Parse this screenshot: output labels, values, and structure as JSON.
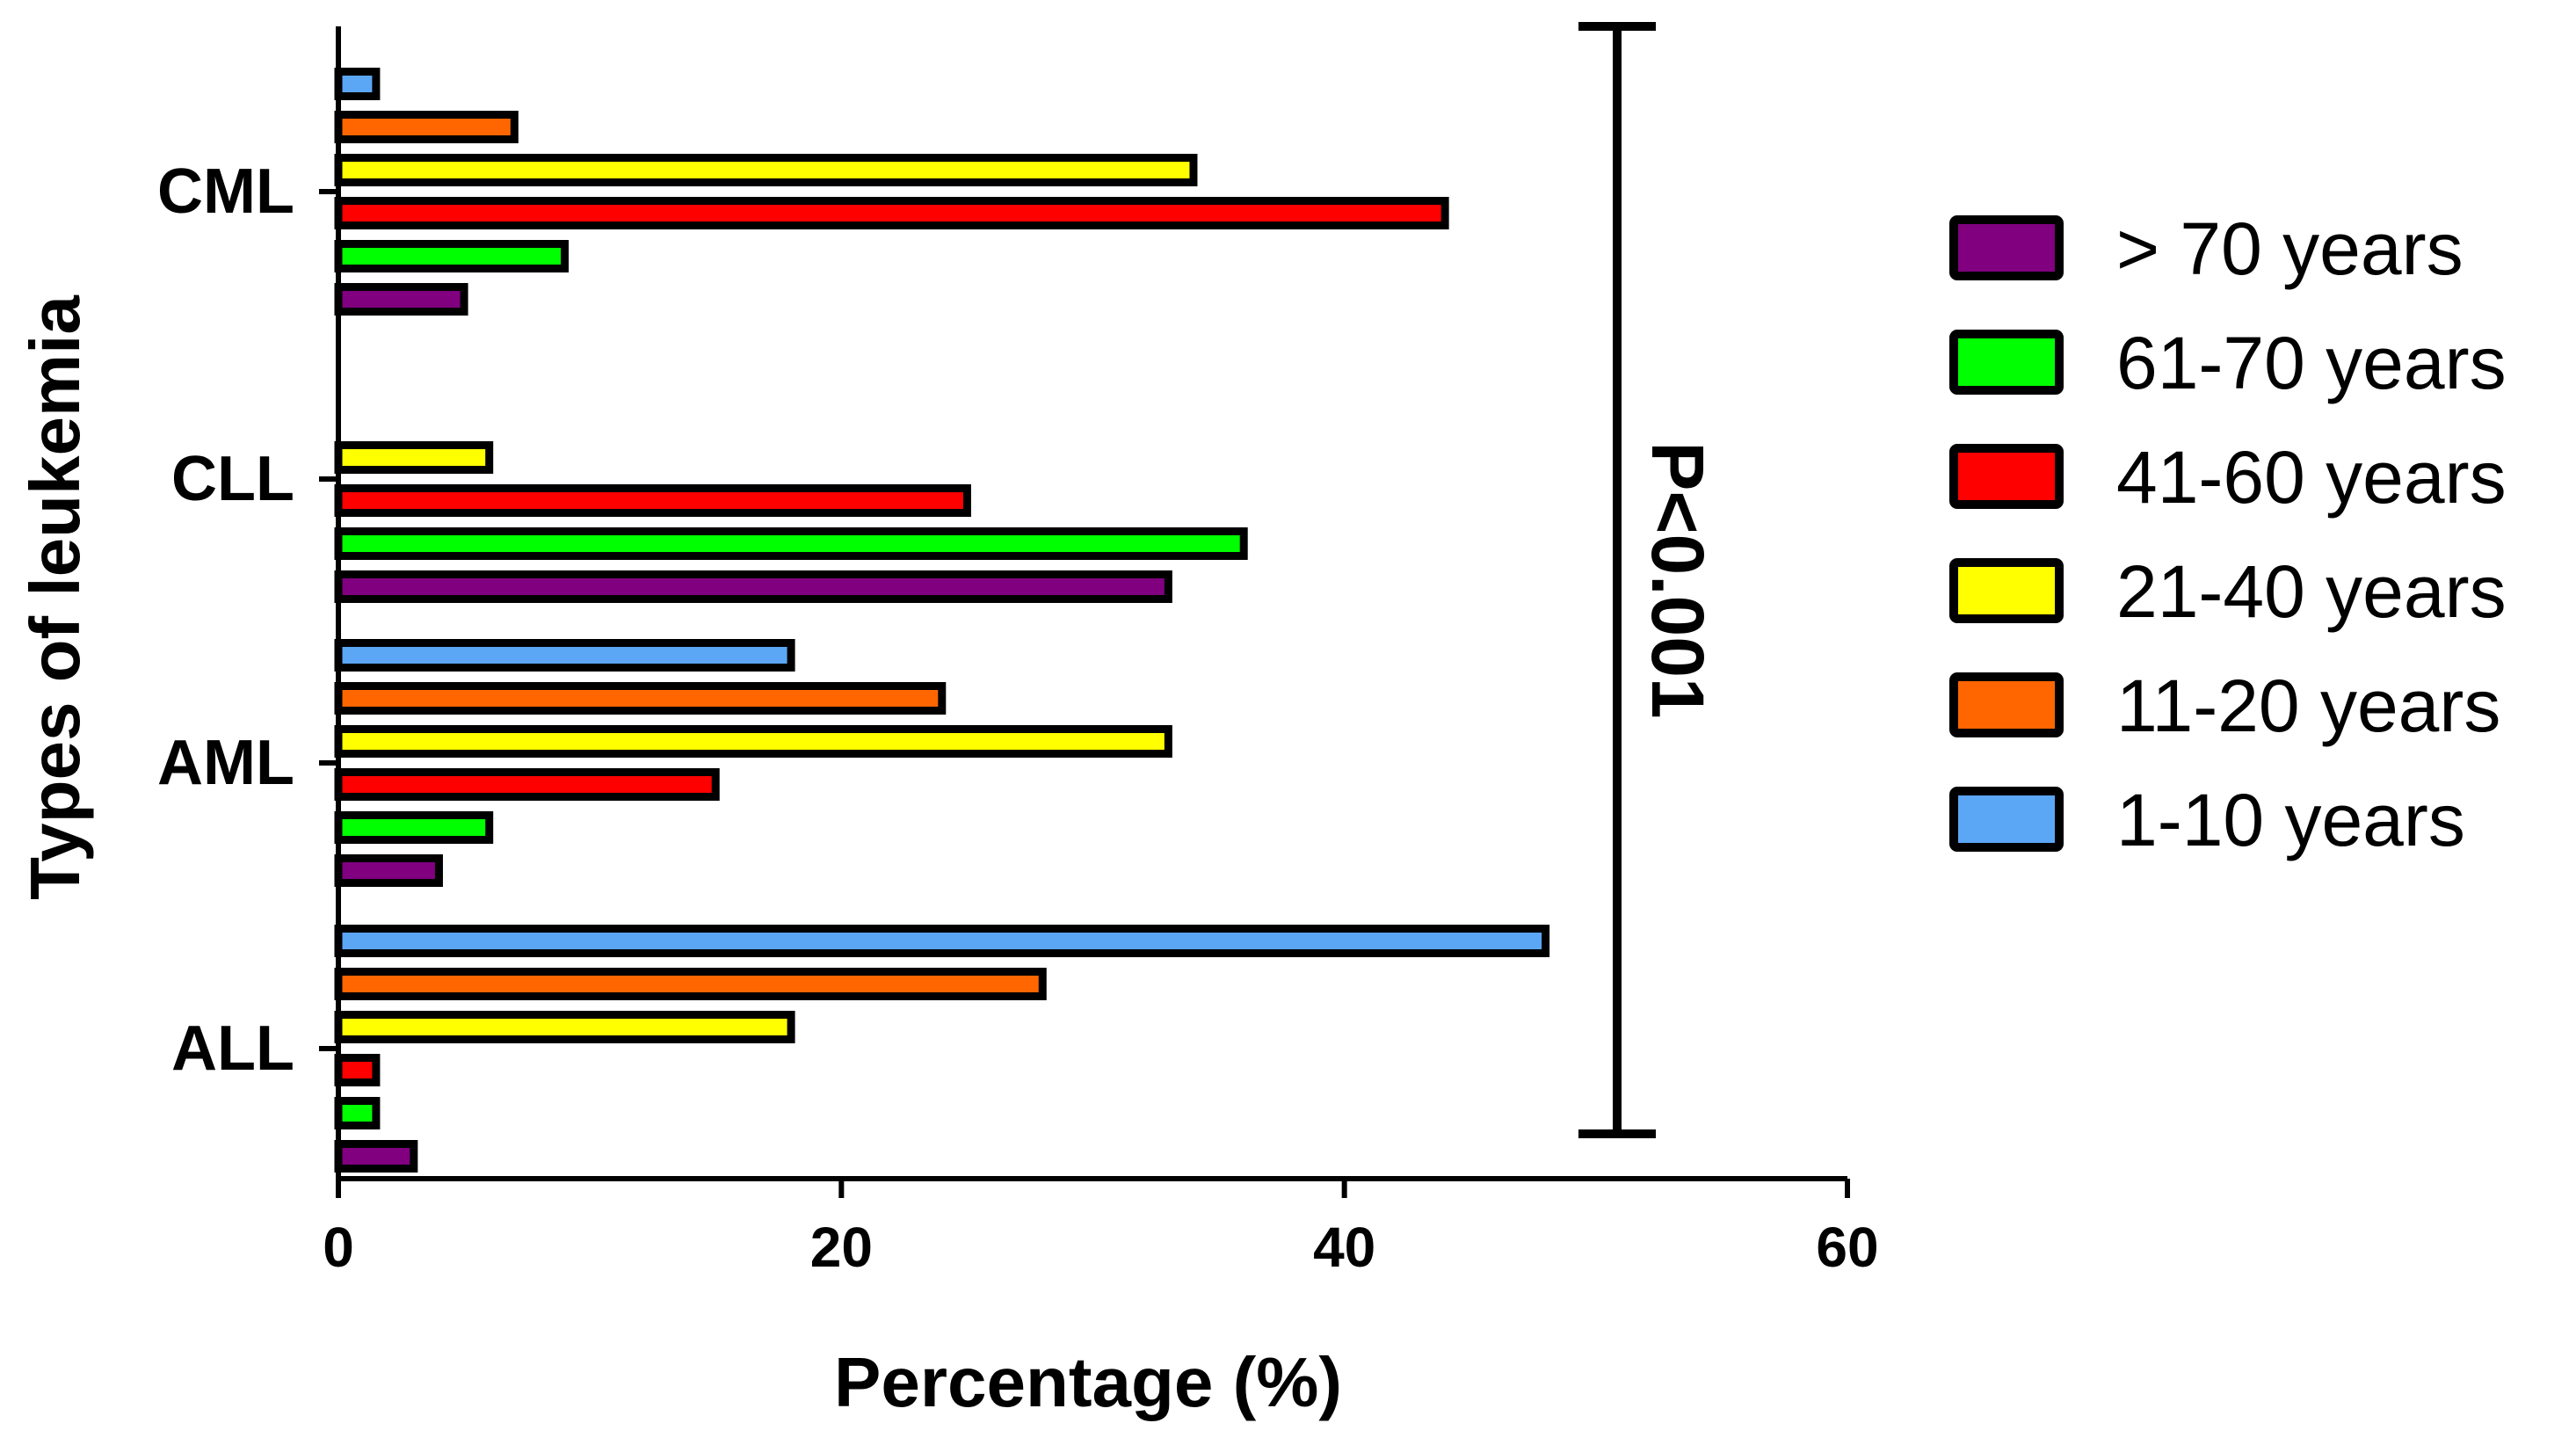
{
  "chart_data": {
    "type": "bar",
    "orientation": "horizontal",
    "title": "",
    "xlabel": "Percentage (%)",
    "ylabel": "Types of leukemia",
    "xlim": [
      0,
      60
    ],
    "x_ticks": [
      "0",
      "20",
      "40",
      "60"
    ],
    "categories": [
      "ALL",
      "AML",
      "CLL",
      "CML"
    ],
    "series": [
      {
        "name": "> 70 years",
        "color": "#800080",
        "values": [
          3,
          4,
          33,
          5
        ]
      },
      {
        "name": "61-70 years",
        "color": "#00ff00",
        "values": [
          1.5,
          6,
          36,
          9
        ]
      },
      {
        "name": "41-60 years",
        "color": "#ff0000",
        "values": [
          1.5,
          15,
          25,
          44
        ]
      },
      {
        "name": "21-40 years",
        "color": "#ffff00",
        "values": [
          18,
          33,
          6,
          34
        ]
      },
      {
        "name": "11-20 years",
        "color": "#ff6600",
        "values": [
          28,
          24,
          0,
          7
        ]
      },
      {
        "name": "1-10 years",
        "color": "#5ba6f5",
        "values": [
          48,
          18,
          0,
          1.5
        ]
      }
    ],
    "grid": false,
    "legend_position": "right",
    "annotation": "P<0.001"
  }
}
